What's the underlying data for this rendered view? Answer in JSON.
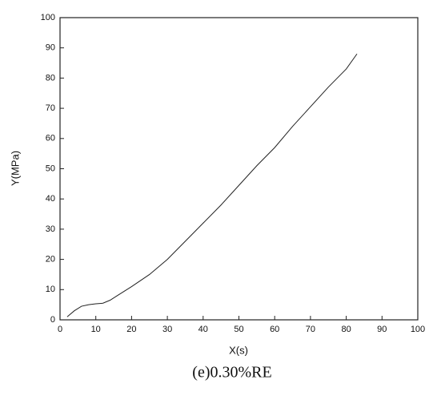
{
  "chart_data": {
    "type": "line",
    "caption": "(e)0.30%RE",
    "xlabel": "X(s)",
    "ylabel": "Y(MPa)",
    "x": [
      2,
      4,
      6,
      8,
      10,
      12,
      14,
      16,
      18,
      20,
      25,
      30,
      35,
      40,
      45,
      50,
      55,
      60,
      65,
      70,
      75,
      80,
      83
    ],
    "series": [
      {
        "color": "#222222",
        "values": [
          1,
          3,
          4.5,
          5,
          5.3,
          5.5,
          6.5,
          8,
          9.5,
          11,
          15,
          20,
          26,
          32,
          38,
          44.5,
          51,
          57,
          64,
          70.5,
          77,
          83,
          88
        ]
      }
    ],
    "xlim": [
      0,
      100
    ],
    "xticks": [
      0,
      10,
      20,
      30,
      40,
      50,
      60,
      70,
      80,
      90,
      100
    ],
    "ylim": [
      0,
      100
    ],
    "yticks": [
      0,
      10,
      20,
      30,
      40,
      50,
      60,
      70,
      80,
      90,
      100
    ]
  }
}
